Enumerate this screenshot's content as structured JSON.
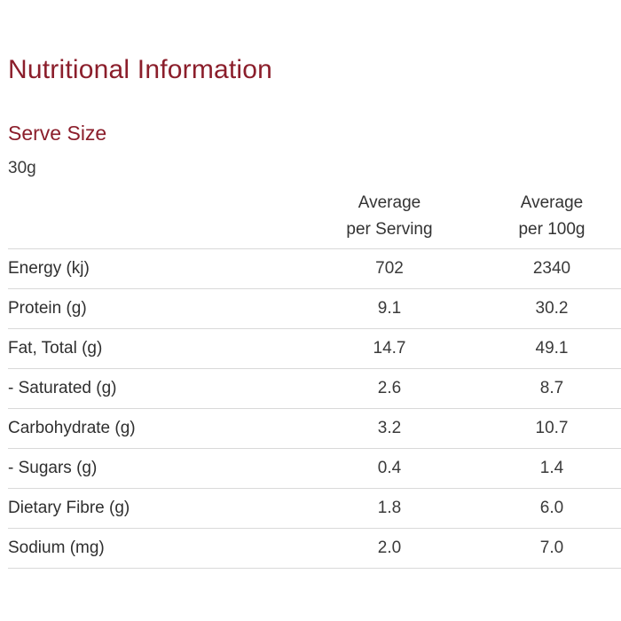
{
  "title": "Nutritional Information",
  "serve_size": {
    "heading": "Serve Size",
    "value": "30g"
  },
  "table": {
    "columns": [
      {
        "line1": "Average",
        "line2": "per Serving"
      },
      {
        "line1": "Average",
        "line2": "per 100g"
      }
    ],
    "rows": [
      {
        "label": "Energy (kj)",
        "per_serving": "702",
        "per_100g": "2340"
      },
      {
        "label": "Protein (g)",
        "per_serving": "9.1",
        "per_100g": "30.2"
      },
      {
        "label": "Fat, Total (g)",
        "per_serving": "14.7",
        "per_100g": "49.1"
      },
      {
        "label": "- Saturated (g)",
        "per_serving": "2.6",
        "per_100g": "8.7"
      },
      {
        "label": "Carbohydrate (g)",
        "per_serving": "3.2",
        "per_100g": "10.7"
      },
      {
        "label": "- Sugars (g)",
        "per_serving": "0.4",
        "per_100g": "1.4"
      },
      {
        "label": "Dietary Fibre (g)",
        "per_serving": "1.8",
        "per_100g": "6.0"
      },
      {
        "label": "Sodium (mg)",
        "per_serving": "2.0",
        "per_100g": "7.0"
      }
    ]
  },
  "colors": {
    "accent": "#8b1e2b",
    "text": "#333333",
    "rule": "#d9d9d9"
  }
}
